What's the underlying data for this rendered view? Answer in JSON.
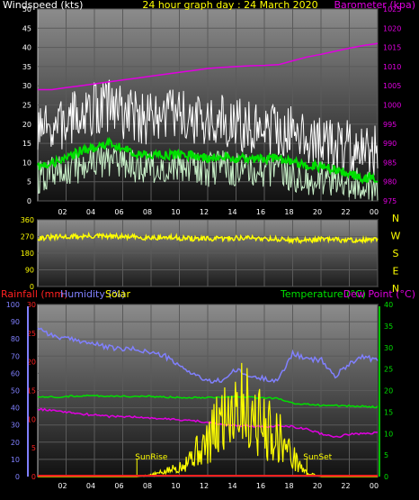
{
  "chart_data": [
    {
      "type": "line",
      "title": "24 hour graph day : 24 March 2020",
      "left_axis_label": "Windspeed (kts)",
      "right_axis_label": "Barometer (kpa)",
      "x_tick_labels": [
        "02",
        "04",
        "06",
        "08",
        "10",
        "12",
        "14",
        "16",
        "18",
        "20",
        "22",
        "00"
      ],
      "x_range_hours": [
        0,
        24
      ],
      "left_ylim": [
        0,
        50
      ],
      "left_ticks": [
        0,
        5,
        10,
        15,
        20,
        25,
        30,
        35,
        40,
        45,
        50
      ],
      "right_ylim": [
        975,
        1025
      ],
      "right_ticks": [
        975,
        980,
        985,
        990,
        995,
        1000,
        1005,
        1010,
        1015,
        1020,
        1025
      ],
      "grid": true,
      "colors": {
        "gust": "#ffffff",
        "speed": "#c8f0c8",
        "average": "#00e000",
        "barometer": "#e000e0"
      },
      "series": [
        {
          "name": "",
          "x": [
            0,
            1,
            2,
            3,
            4,
            5,
            6,
            7,
            8,
            9,
            10,
            11,
            12,
            13,
            14,
            15,
            16,
            17,
            18,
            19,
            20,
            21,
            22,
            23,
            24
          ],
          "values": [
            17,
            19,
            20,
            23,
            24,
            25,
            23,
            22,
            21,
            22,
            22,
            21,
            20,
            21,
            20,
            19,
            19,
            19,
            18,
            17,
            16,
            15,
            14,
            13,
            13
          ]
        },
        {
          "name": "",
          "x": [
            0,
            1,
            2,
            3,
            4,
            5,
            6,
            7,
            8,
            9,
            10,
            11,
            12,
            13,
            14,
            15,
            16,
            17,
            18,
            19,
            20,
            21,
            22,
            23,
            24
          ],
          "values": [
            6,
            7,
            8,
            9,
            10,
            11,
            10,
            9,
            9,
            9,
            9,
            9,
            8,
            9,
            8,
            8,
            8,
            8,
            7,
            6,
            6,
            5,
            5,
            4,
            4
          ]
        },
        {
          "name": "",
          "x": [
            0,
            1,
            2,
            3,
            4,
            5,
            6,
            7,
            8,
            9,
            10,
            11,
            12,
            13,
            14,
            15,
            16,
            17,
            18,
            19,
            20,
            21,
            22,
            23,
            24
          ],
          "values": [
            9,
            10,
            11,
            13,
            14,
            15,
            14,
            12,
            12,
            12,
            12,
            12,
            11,
            12,
            11,
            11,
            11,
            11,
            10,
            9,
            9,
            8,
            7,
            6,
            6
          ]
        },
        {
          "name": "",
          "x": [
            0,
            1,
            2,
            3,
            4,
            5,
            6,
            7,
            8,
            9,
            10,
            11,
            12,
            13,
            14,
            15,
            16,
            17,
            18,
            19,
            20,
            21,
            22,
            23,
            24
          ],
          "values": [
            1004,
            1004,
            1004.5,
            1005,
            1005.5,
            1006,
            1006.5,
            1007,
            1007.5,
            1008,
            1008.5,
            1009,
            1009.5,
            1009.8,
            1010,
            1010.2,
            1010.3,
            1010.5,
            1011.5,
            1012.5,
            1013.2,
            1014,
            1014.8,
            1015.5,
            1016
          ]
        }
      ]
    },
    {
      "type": "line",
      "x_range_hours": [
        0,
        24
      ],
      "left_ylim": [
        0,
        360
      ],
      "left_ticks": [
        0,
        90,
        180,
        270,
        360
      ],
      "right_labels": [
        "N",
        "W",
        "S",
        "E",
        "N"
      ],
      "grid": true,
      "colors": {
        "direction": "#ffff00"
      },
      "series": [
        {
          "name": "",
          "x": [
            0,
            1,
            2,
            3,
            4,
            5,
            6,
            7,
            8,
            9,
            10,
            11,
            12,
            13,
            14,
            15,
            16,
            17,
            18,
            19,
            20,
            21,
            22,
            23,
            24
          ],
          "values": [
            262,
            265,
            268,
            270,
            272,
            270,
            268,
            266,
            265,
            265,
            262,
            258,
            256,
            258,
            262,
            262,
            260,
            255,
            250,
            250,
            255,
            252,
            250,
            250,
            252
          ]
        }
      ]
    },
    {
      "type": "line",
      "legend_left": [
        "Rainfall (mm)",
        "Humidity (%)",
        "Solar"
      ],
      "legend_right": [
        "Temperature (°C)",
        "Dew Point (°C)"
      ],
      "x_tick_labels": [
        "02",
        "04",
        "06",
        "08",
        "10",
        "12",
        "14",
        "16",
        "18",
        "20",
        "22",
        "00"
      ],
      "x_range_hours": [
        0,
        24
      ],
      "humidity_ylim": [
        0,
        100
      ],
      "humidity_ticks": [
        0,
        10,
        20,
        30,
        40,
        50,
        60,
        70,
        80,
        90,
        100
      ],
      "rain_ylim": [
        0,
        30
      ],
      "rain_ticks": [
        0,
        5,
        10,
        15,
        20,
        25,
        30
      ],
      "temp_ylim": [
        0,
        40
      ],
      "temp_ticks": [
        0,
        5,
        10,
        15,
        20,
        25,
        30,
        35,
        40
      ],
      "grid": true,
      "annotations": [
        {
          "text": "SunRise",
          "hour": 7.0
        },
        {
          "text": "SunSet",
          "hour": 19.0
        }
      ],
      "colors": {
        "rainfall": "#ff2020",
        "humidity": "#8080ff",
        "solar": "#ffff00",
        "temperature": "#00e000",
        "dewpoint": "#e000e0"
      },
      "series": [
        {
          "name": "",
          "x": [
            0,
            1,
            2,
            3,
            4,
            5,
            6,
            7,
            8,
            9,
            10,
            11,
            12,
            13,
            14,
            15,
            16,
            17,
            18,
            19,
            20,
            21,
            22,
            23,
            24
          ],
          "values": [
            0,
            0,
            0,
            0,
            0,
            0,
            0,
            0,
            0,
            0,
            0,
            0,
            0,
            0,
            0,
            0,
            0,
            0,
            0,
            0,
            0,
            0,
            0,
            0,
            0
          ]
        },
        {
          "name": "",
          "x": [
            0,
            1,
            2,
            3,
            4,
            5,
            6,
            7,
            8,
            9,
            10,
            11,
            12,
            13,
            14,
            15,
            16,
            17,
            18,
            19,
            20,
            21,
            22,
            23,
            24
          ],
          "values": [
            87,
            82,
            80,
            79,
            77,
            75,
            74,
            74,
            72,
            70,
            64,
            60,
            55,
            56,
            62,
            58,
            57,
            56,
            72,
            68,
            68,
            58,
            66,
            70,
            67
          ]
        },
        {
          "name": "",
          "x": [
            0,
            1,
            2,
            3,
            4,
            5,
            6,
            7,
            8,
            9,
            10,
            11,
            12,
            13,
            14,
            15,
            16,
            17,
            18,
            19,
            20,
            21,
            22,
            23,
            24
          ],
          "values": [
            0,
            0,
            0,
            0,
            0,
            0,
            0,
            0,
            1,
            3,
            6,
            14,
            20,
            35,
            48,
            40,
            30,
            25,
            12,
            2,
            0,
            0,
            0,
            0,
            0
          ]
        },
        {
          "name": "",
          "x": [
            0,
            1,
            2,
            3,
            4,
            5,
            6,
            7,
            8,
            9,
            10,
            11,
            12,
            13,
            14,
            15,
            16,
            17,
            18,
            19,
            20,
            21,
            22,
            23,
            24
          ],
          "values": [
            18.5,
            18.5,
            18.6,
            18.8,
            18.8,
            18.7,
            18.7,
            18.6,
            18.6,
            18.5,
            18.4,
            18.4,
            18.4,
            18.5,
            18.6,
            18.4,
            18.3,
            18.2,
            17.0,
            16.8,
            16.6,
            16.5,
            16.4,
            16.3,
            16.2
          ]
        },
        {
          "name": "",
          "x": [
            0,
            1,
            2,
            3,
            4,
            5,
            6,
            7,
            8,
            9,
            10,
            11,
            12,
            13,
            14,
            15,
            16,
            17,
            18,
            19,
            20,
            21,
            22,
            23,
            24
          ],
          "values": [
            15.8,
            15.3,
            15.0,
            14.6,
            14.3,
            14.0,
            14.0,
            13.8,
            13.6,
            13.4,
            13.2,
            13.0,
            12.6,
            12.2,
            11.8,
            11.8,
            11.5,
            12.0,
            11.6,
            11.0,
            10.0,
            9.2,
            9.8,
            10.0,
            10.2
          ]
        }
      ]
    }
  ]
}
